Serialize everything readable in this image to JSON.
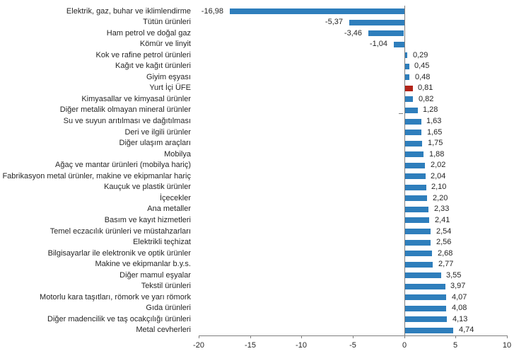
{
  "chart_data": {
    "type": "bar",
    "orientation": "horizontal",
    "title": "",
    "xlabel": "",
    "ylabel": "",
    "xlim": [
      -20,
      10
    ],
    "x_ticks": [
      -20,
      -15,
      -10,
      -5,
      0,
      5,
      10
    ],
    "x_tick_labels": [
      "-20",
      "-15",
      "-10",
      "-5",
      "0",
      "5",
      "10"
    ],
    "grid": false,
    "legend": "none",
    "bar_color": "#2e7ebc",
    "highlight_color": "#b22318",
    "highlight_category": "Yurt İçi ÜFE",
    "axis_color": "#7f7f7f",
    "text_color": "#262626",
    "categories": [
      "Elektrik, gaz, buhar ve iklimlendirme",
      "Tütün ürünleri",
      "Ham petrol ve doğal gaz",
      "Kömür ve linyit",
      "Kok ve rafine petrol ürünleri",
      "Kağıt ve kağıt ürünleri",
      "Giyim eşyası",
      "Yurt İçi ÜFE",
      "Kimyasallar ve kimyasal ürünler",
      "Diğer metalik olmayan mineral ürünler",
      "Su ve suyun arıtılması ve dağıtılması",
      "Deri ve ilgili ürünler",
      "Diğer ulaşım araçları",
      "Mobilya",
      "Ağaç ve mantar ürünleri (mobilya hariç)",
      "Fabrikasyon metal ürünler, makine ve ekipmanlar hariç",
      "Kauçuk ve plastik ürünler",
      "İçecekler",
      "Ana metaller",
      "Basım ve kayıt hizmetleri",
      "Temel eczacılık ürünleri ve müstahzarları",
      "Elektrikli teçhizat",
      "Bilgisayarlar ile elektronik ve optik ürünler",
      "Makine ve ekipmanlar b.y.s.",
      "Diğer mamul eşyalar",
      "Tekstil ürünleri",
      "Motorlu kara taşıtları, römork ve yarı römork",
      "Gıda ürünleri",
      "Diğer madencilik ve taş ocakçılığı ürünleri",
      "Metal cevherleri"
    ],
    "values": [
      -16.98,
      -5.37,
      -3.46,
      -1.04,
      0.29,
      0.45,
      0.48,
      0.81,
      0.82,
      1.28,
      1.63,
      1.65,
      1.75,
      1.88,
      2.02,
      2.04,
      2.1,
      2.2,
      2.33,
      2.41,
      2.54,
      2.56,
      2.68,
      2.77,
      3.55,
      3.97,
      4.07,
      4.08,
      4.13,
      4.74
    ],
    "value_labels": [
      "-16,98",
      "-5,37",
      "-3,46",
      "-1,04",
      "0,29",
      "0,45",
      "0,48",
      "0,81",
      "0,82",
      "1,28",
      "1,63",
      "1,65",
      "1,75",
      "1,88",
      "2,02",
      "2,04",
      "2,10",
      "2,20",
      "2,33",
      "2,41",
      "2,54",
      "2,56",
      "2,68",
      "2,77",
      "3,55",
      "3,97",
      "4,07",
      "4,08",
      "4,13",
      "4,74"
    ]
  }
}
